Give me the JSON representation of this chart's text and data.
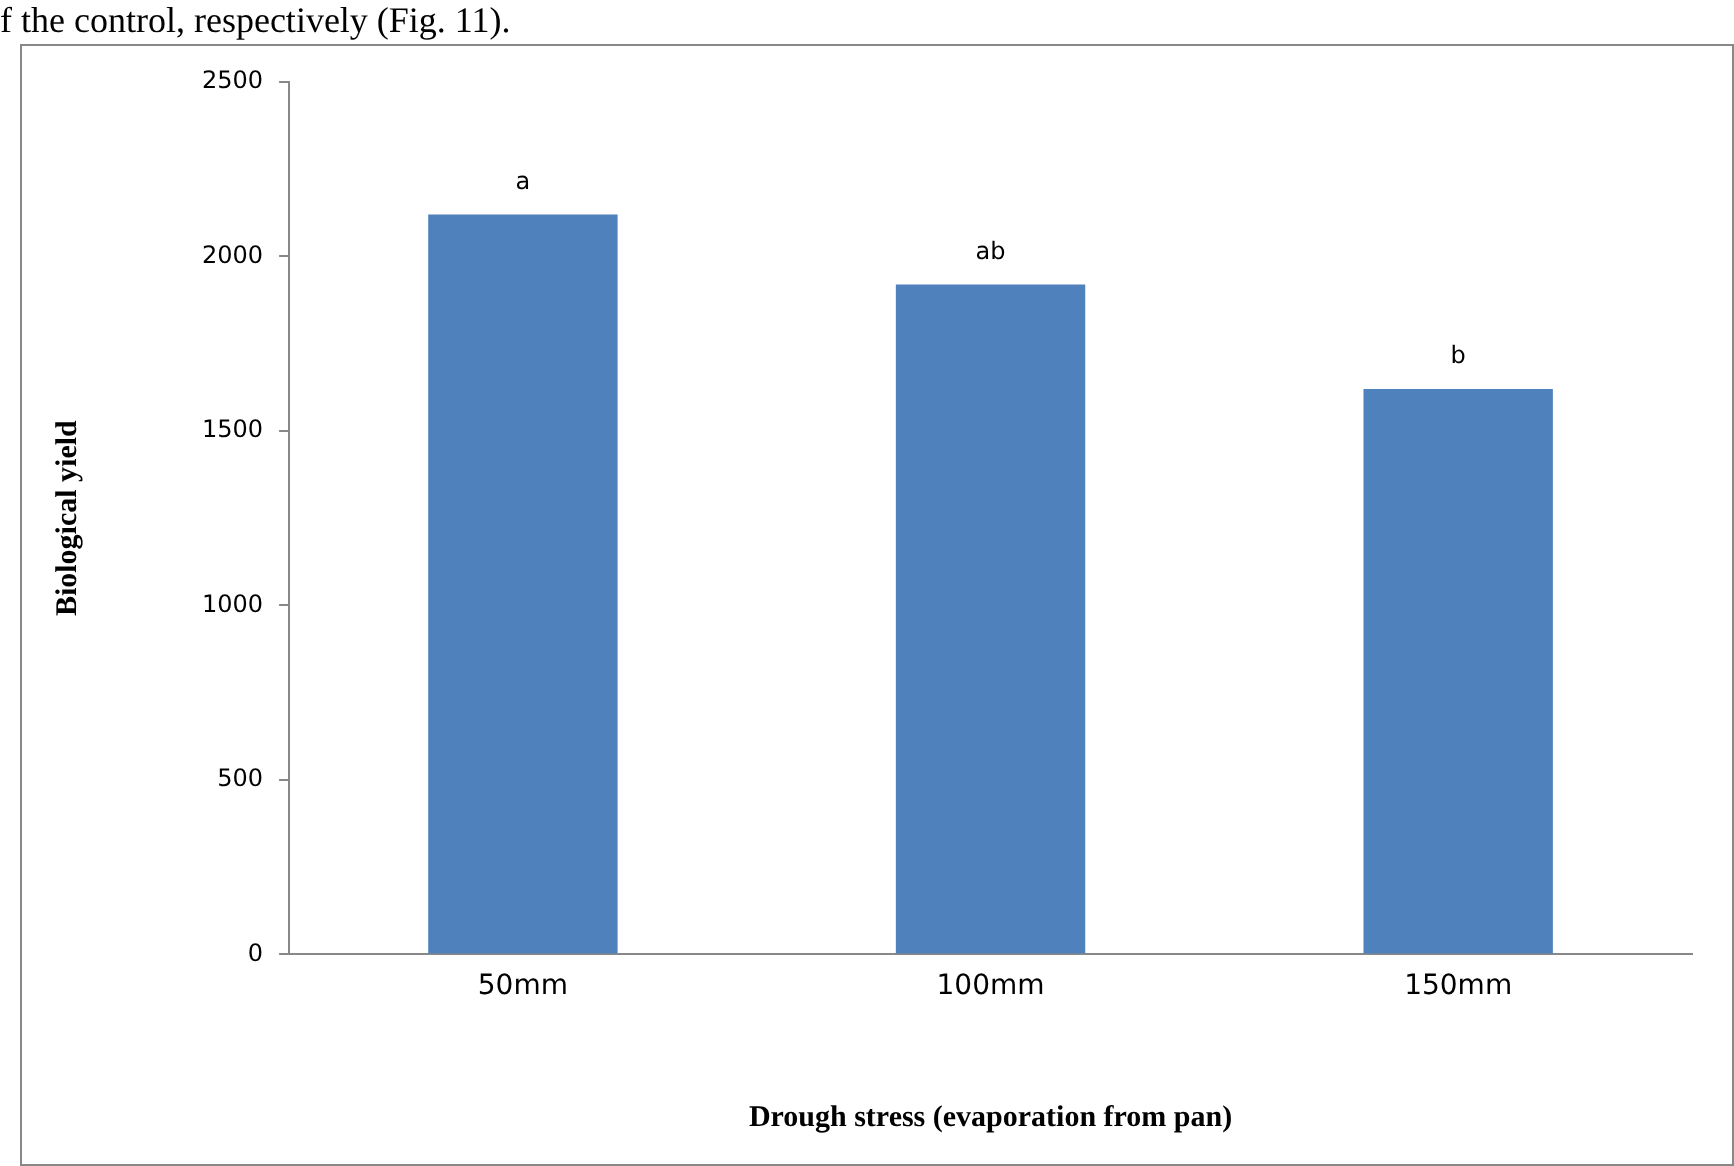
{
  "chart_data": {
    "type": "bar",
    "xlabel": "Drough stress (evaporation from pan)",
    "ylabel": "Biological yield",
    "categories": [
      "50mm",
      "100mm",
      "150mm"
    ],
    "series": [
      {
        "color": "#4f81bd",
        "values": [
          2120,
          1920,
          1620
        ],
        "value_labels": [
          "a",
          "ab",
          "b"
        ]
      }
    ],
    "ylim": [
      0,
      2500
    ],
    "yticks": [
      0,
      500,
      1000,
      1500,
      2000,
      2500
    ],
    "grid": false,
    "legend": false,
    "annotations": [
      "f the control, respectively (Fig. 11)."
    ]
  }
}
